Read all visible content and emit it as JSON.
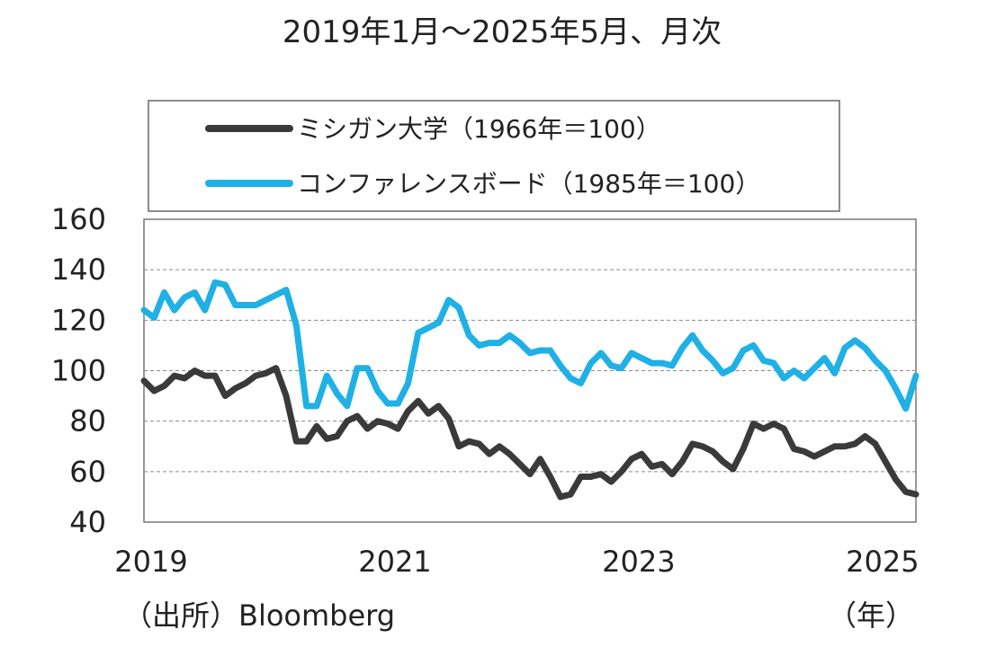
{
  "title": "2019年1月～2025年5月、月次",
  "source": "（出所）Bloomberg",
  "x_unit": "（年）",
  "colors": {
    "michigan": "#3a3a3a",
    "conference_board": "#1fb0e6"
  },
  "chart_data": {
    "type": "line",
    "title": "2019年1月～2025年5月、月次",
    "xlabel": "",
    "ylabel": "",
    "x_start": "2019-01",
    "ylim": [
      40,
      160
    ],
    "yticks": [
      "160",
      "140",
      "120",
      "100",
      "80",
      "60",
      "40"
    ],
    "xticks": [
      "2019",
      "2021",
      "2023",
      "2025"
    ],
    "grid": true,
    "legend": "top",
    "series": [
      {
        "name": "ミシガン大学（1966年＝100）",
        "values": [
          96,
          92,
          94,
          98,
          97,
          100,
          98,
          98,
          90,
          93,
          95,
          98,
          99,
          101,
          90,
          72,
          72,
          78,
          73,
          74,
          80,
          82,
          77,
          80,
          79,
          77,
          84,
          88,
          83,
          86,
          81,
          70,
          72,
          71,
          67,
          70,
          67,
          63,
          59,
          65,
          58,
          50,
          51,
          58,
          58,
          59,
          56,
          60,
          65,
          67,
          62,
          63,
          59,
          64,
          71,
          70,
          68,
          64,
          61,
          69,
          79,
          77,
          79,
          77,
          69,
          68,
          66,
          68,
          70,
          70,
          71,
          74,
          71,
          64,
          57,
          52,
          51
        ]
      },
      {
        "name": "コンファレンスボード（1985年＝100）",
        "values": [
          124,
          121,
          131,
          124,
          129,
          131,
          124,
          135,
          134,
          126,
          126,
          126,
          128,
          130,
          132,
          118,
          86,
          86,
          98,
          91,
          86,
          101,
          101,
          92,
          87,
          87,
          95,
          115,
          117,
          119,
          128,
          125,
          114,
          110,
          111,
          111,
          114,
          111,
          107,
          108,
          108,
          102,
          97,
          95,
          103,
          107,
          102,
          101,
          107,
          105,
          103,
          103,
          102,
          109,
          114,
          108,
          104,
          99,
          101,
          108,
          110,
          104,
          103,
          97,
          100,
          97,
          101,
          105,
          99,
          109,
          112,
          109,
          104,
          100,
          93,
          85,
          98
        ]
      }
    ]
  }
}
